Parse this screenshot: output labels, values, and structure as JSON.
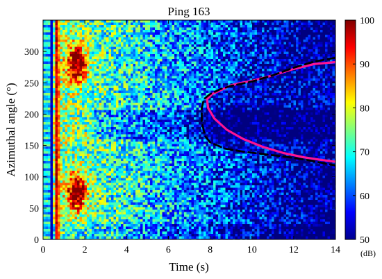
{
  "chart_data": {
    "type": "heatmap",
    "title": "Ping 163",
    "xlabel": "Time (s)",
    "ylabel": "Azimuthal angle (°)",
    "xlim": [
      0,
      14
    ],
    "ylim": [
      0,
      350
    ],
    "x_ticks": [
      0,
      2,
      4,
      6,
      8,
      10,
      12,
      14
    ],
    "y_ticks": [
      0,
      50,
      100,
      150,
      200,
      250,
      300
    ],
    "colorbar": {
      "min": 50,
      "max": 100,
      "ticks": [
        50,
        60,
        70,
        80,
        90,
        100
      ],
      "unit": "(dB)",
      "colormap": "jet"
    },
    "series": [
      {
        "style": "solid",
        "color": "#ff1493",
        "points": [
          [
            14,
            283
          ],
          [
            13,
            280
          ],
          [
            12,
            272
          ],
          [
            11,
            262
          ],
          [
            10,
            253
          ],
          [
            9.5,
            250
          ],
          [
            9,
            246
          ],
          [
            8.5,
            238
          ],
          [
            8.1,
            232
          ],
          [
            7.85,
            224
          ],
          [
            7.9,
            210
          ],
          [
            8.2,
            193
          ],
          [
            8.8,
            175
          ],
          [
            9.6,
            160
          ],
          [
            10.5,
            148
          ],
          [
            11.5,
            138
          ],
          [
            12.5,
            131
          ],
          [
            13.3,
            127
          ],
          [
            14,
            124
          ]
        ]
      },
      {
        "style": "dashed",
        "color": "#000000",
        "points": [
          [
            14,
            290
          ],
          [
            13,
            284
          ],
          [
            12,
            274
          ],
          [
            11,
            262
          ],
          [
            10,
            252
          ],
          [
            9,
            245
          ],
          [
            8.5,
            240
          ],
          [
            8,
            232
          ],
          [
            7.7,
            224
          ],
          [
            7.6,
            210
          ],
          [
            7.6,
            188
          ],
          [
            7.75,
            165
          ],
          [
            8,
            155
          ],
          [
            8.7,
            145
          ],
          [
            9.6,
            140
          ],
          [
            10.6,
            136
          ],
          [
            11.6,
            132
          ],
          [
            12.6,
            127
          ],
          [
            13.4,
            122
          ],
          [
            14,
            118
          ]
        ]
      }
    ]
  }
}
